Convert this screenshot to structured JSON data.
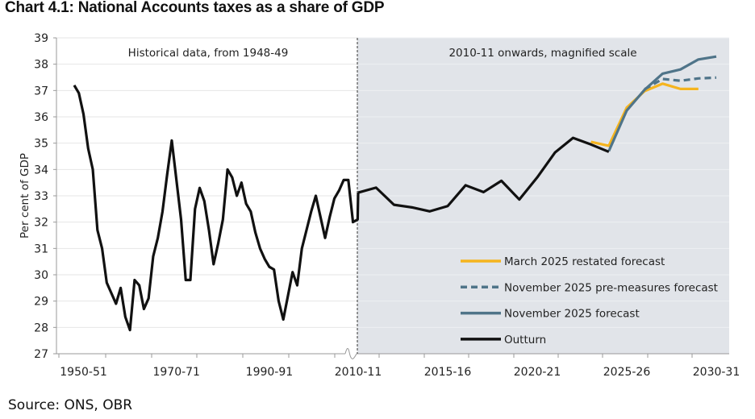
{
  "title": "Chart 4.1: National Accounts taxes as a share of GDP",
  "source": "Source: ONS, OBR",
  "chart_data": {
    "type": "line",
    "ylabel": "Per cent of GDP",
    "ylim": [
      27,
      39
    ],
    "yticks": [
      "27",
      "28",
      "29",
      "30",
      "31",
      "32",
      "33",
      "34",
      "35",
      "36",
      "37",
      "38",
      "39"
    ],
    "grid": true,
    "legend_position": "bottom-right",
    "panels": {
      "historical": {
        "label": "Historical data, from 1948-49",
        "xticks": [
          "1950-51",
          "1970-71",
          "1990-91"
        ]
      },
      "recent": {
        "label": "2010-11 onwards, magnified scale",
        "xticks": [
          "2010-11",
          "2015-16",
          "2020-21",
          "2025-26",
          "2030-31"
        ],
        "shaded_color": "#e1e4e9"
      }
    },
    "historical_years": [
      "1948-49",
      "1949-50",
      "1950-51",
      "1951-52",
      "1952-53",
      "1953-54",
      "1954-55",
      "1955-56",
      "1956-57",
      "1957-58",
      "1958-59",
      "1959-60",
      "1960-61",
      "1961-62",
      "1962-63",
      "1963-64",
      "1964-65",
      "1965-66",
      "1966-67",
      "1967-68",
      "1968-69",
      "1969-70",
      "1970-71",
      "1971-72",
      "1972-73",
      "1973-74",
      "1974-75",
      "1975-76",
      "1976-77",
      "1977-78",
      "1978-79",
      "1979-80",
      "1980-81",
      "1981-82",
      "1982-83",
      "1983-84",
      "1984-85",
      "1985-86",
      "1986-87",
      "1987-88",
      "1988-89",
      "1989-90",
      "1990-91",
      "1991-92",
      "1992-93",
      "1993-94",
      "1994-95",
      "1995-96",
      "1996-97",
      "1997-98",
      "1998-99",
      "1999-00",
      "2000-01",
      "2001-02",
      "2002-03",
      "2003-04",
      "2004-05",
      "2005-06",
      "2006-07",
      "2007-08",
      "2008-09",
      "2009-10"
    ],
    "historical_values": [
      37.2,
      36.9,
      36.1,
      34.8,
      34.0,
      31.7,
      31.0,
      29.7,
      29.3,
      28.9,
      29.5,
      28.4,
      27.9,
      29.8,
      29.6,
      28.7,
      29.1,
      30.7,
      31.4,
      32.4,
      33.8,
      35.1,
      33.6,
      32.1,
      29.8,
      29.8,
      32.5,
      33.3,
      32.8,
      31.7,
      30.4,
      31.2,
      32.1,
      34.0,
      33.7,
      33.0,
      33.5,
      32.7,
      32.4,
      31.6,
      31.0,
      30.6,
      30.3,
      30.2,
      29.0,
      28.3,
      29.2,
      30.1,
      29.6,
      31.0,
      31.7,
      32.4,
      33.0,
      32.2,
      31.4,
      32.2,
      32.9,
      33.2,
      33.6,
      33.6,
      32.0,
      32.1
    ],
    "recent_years": [
      "2010-11",
      "2011-12",
      "2012-13",
      "2013-14",
      "2014-15",
      "2015-16",
      "2016-17",
      "2017-18",
      "2018-19",
      "2019-20",
      "2020-21",
      "2021-22",
      "2022-23",
      "2023-24",
      "2024-25",
      "2025-26",
      "2026-27",
      "2027-28",
      "2028-29",
      "2029-30",
      "2030-31"
    ],
    "series": [
      {
        "name": "March 2025 restated forecast",
        "color": "#f5b41e",
        "dashed": false,
        "values": [
          null,
          null,
          null,
          null,
          null,
          null,
          null,
          null,
          null,
          null,
          null,
          null,
          null,
          35.05,
          34.9,
          36.35,
          36.98,
          37.26,
          37.06,
          37.06,
          null
        ]
      },
      {
        "name": "November 2025 pre-measures forecast",
        "color": "#4f7489",
        "dashed": true,
        "values": [
          null,
          null,
          null,
          null,
          null,
          null,
          null,
          null,
          null,
          null,
          null,
          null,
          null,
          null,
          null,
          null,
          37.05,
          37.44,
          37.37,
          37.46,
          37.49
        ]
      },
      {
        "name": "November 2025 forecast",
        "color": "#4f7489",
        "dashed": false,
        "values": [
          null,
          null,
          null,
          null,
          null,
          null,
          null,
          null,
          null,
          null,
          null,
          null,
          null,
          null,
          34.7,
          36.24,
          37.03,
          37.64,
          37.8,
          38.18,
          38.29
        ]
      },
      {
        "name": "Outturn",
        "color": "#111111",
        "dashed": false,
        "values": [
          33.12,
          33.31,
          32.66,
          32.56,
          32.41,
          32.61,
          33.4,
          33.14,
          33.57,
          32.86,
          33.7,
          34.65,
          35.2,
          34.95,
          34.67,
          null,
          null,
          null,
          null,
          null,
          null
        ]
      }
    ]
  }
}
